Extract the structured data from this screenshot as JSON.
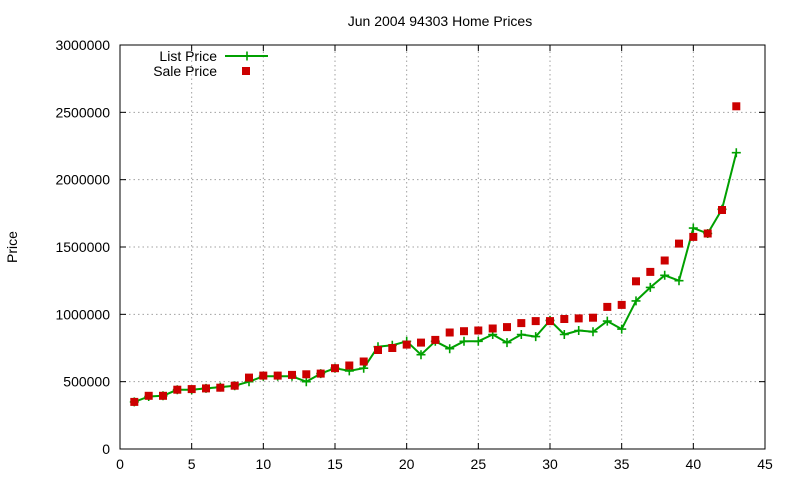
{
  "chart_data": {
    "type": "line",
    "title": "Jun 2004 94303 Home Prices",
    "xlabel": "",
    "ylabel": "Price",
    "xlim": [
      0,
      45
    ],
    "ylim": [
      0,
      3000000
    ],
    "x_ticks": [
      "0",
      "5",
      "10",
      "15",
      "20",
      "25",
      "30",
      "35",
      "40",
      "45"
    ],
    "y_ticks": [
      "0",
      "500000",
      "1000000",
      "1500000",
      "2000000",
      "2500000",
      "3000000"
    ],
    "grid": true,
    "legend_position": "top-left",
    "colors": {
      "list": "#00a000",
      "sale": "#cc0000"
    },
    "x": [
      1,
      2,
      3,
      4,
      5,
      6,
      7,
      8,
      9,
      10,
      11,
      12,
      13,
      14,
      15,
      16,
      17,
      18,
      19,
      20,
      21,
      22,
      23,
      24,
      25,
      26,
      27,
      28,
      29,
      30,
      31,
      32,
      33,
      34,
      35,
      36,
      37,
      38,
      39,
      40,
      41,
      42,
      43
    ],
    "series": [
      {
        "name": "List Price",
        "style": "line+cross",
        "values": [
          350000,
          390000,
          395000,
          440000,
          440000,
          450000,
          460000,
          470000,
          500000,
          540000,
          540000,
          540000,
          500000,
          560000,
          600000,
          580000,
          600000,
          760000,
          770000,
          800000,
          700000,
          800000,
          745000,
          800000,
          800000,
          850000,
          790000,
          850000,
          835000,
          955000,
          850000,
          880000,
          870000,
          950000,
          890000,
          1100000,
          1200000,
          1290000,
          1250000,
          1640000,
          1600000,
          1780000,
          2200000
        ]
      },
      {
        "name": "Sale Price",
        "style": "square",
        "values": [
          350000,
          395000,
          395000,
          440000,
          445000,
          450000,
          455000,
          470000,
          530000,
          545000,
          545000,
          550000,
          555000,
          560000,
          600000,
          620000,
          650000,
          735000,
          750000,
          775000,
          790000,
          810000,
          865000,
          875000,
          880000,
          895000,
          905000,
          935000,
          950000,
          950000,
          965000,
          970000,
          975000,
          1055000,
          1070000,
          1245000,
          1315000,
          1400000,
          1525000,
          1575000,
          1600000,
          1775000,
          2545000
        ]
      }
    ]
  }
}
